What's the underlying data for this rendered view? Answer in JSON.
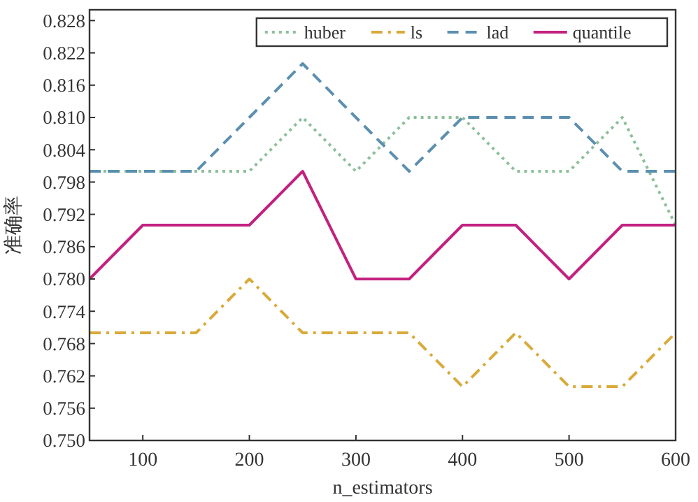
{
  "chart_data": {
    "type": "line",
    "xlabel": "n_estimators",
    "ylabel": "准确率",
    "x": [
      50,
      100,
      150,
      200,
      250,
      300,
      350,
      400,
      450,
      500,
      550,
      600
    ],
    "xlim": [
      50,
      600
    ],
    "xticks": [
      100,
      200,
      300,
      400,
      500,
      600
    ],
    "ylim": [
      0.75,
      0.83
    ],
    "yticks": [
      {
        "value": 0.75,
        "label": "0.750"
      },
      0.756,
      0.762,
      0.768,
      0.774,
      {
        "value": 0.78,
        "label": "0.780"
      },
      0.786,
      0.792,
      0.798,
      0.804,
      {
        "value": 0.81,
        "label": "0.810"
      },
      0.816,
      0.822,
      0.828
    ],
    "grid": false,
    "legend": "top right",
    "marker": "none",
    "series": [
      {
        "name": "huber",
        "color": "#8dbf9a",
        "line_style": "dotted",
        "values": [
          0.8,
          0.8,
          0.8,
          0.8,
          0.81,
          0.8,
          0.81,
          0.81,
          0.8,
          0.8,
          0.81,
          0.79
        ]
      },
      {
        "name": "ls",
        "color": "#d9aa3a",
        "line_style": "dashdot",
        "values": [
          0.77,
          0.77,
          0.77,
          0.78,
          0.77,
          0.77,
          0.77,
          0.76,
          0.77,
          0.76,
          0.76,
          0.77
        ]
      },
      {
        "name": "lad",
        "color": "#5b8fb0",
        "line_style": "dashed",
        "values": [
          0.8,
          0.8,
          0.8,
          0.81,
          0.82,
          0.81,
          0.8,
          0.81,
          0.81,
          0.81,
          0.8,
          0.8
        ]
      },
      {
        "name": "quantile",
        "color": "#c2217f",
        "line_style": "solid",
        "values": [
          0.78,
          0.79,
          0.79,
          0.79,
          0.8,
          0.78,
          0.78,
          0.79,
          0.79,
          0.78,
          0.79,
          0.79
        ]
      }
    ]
  }
}
